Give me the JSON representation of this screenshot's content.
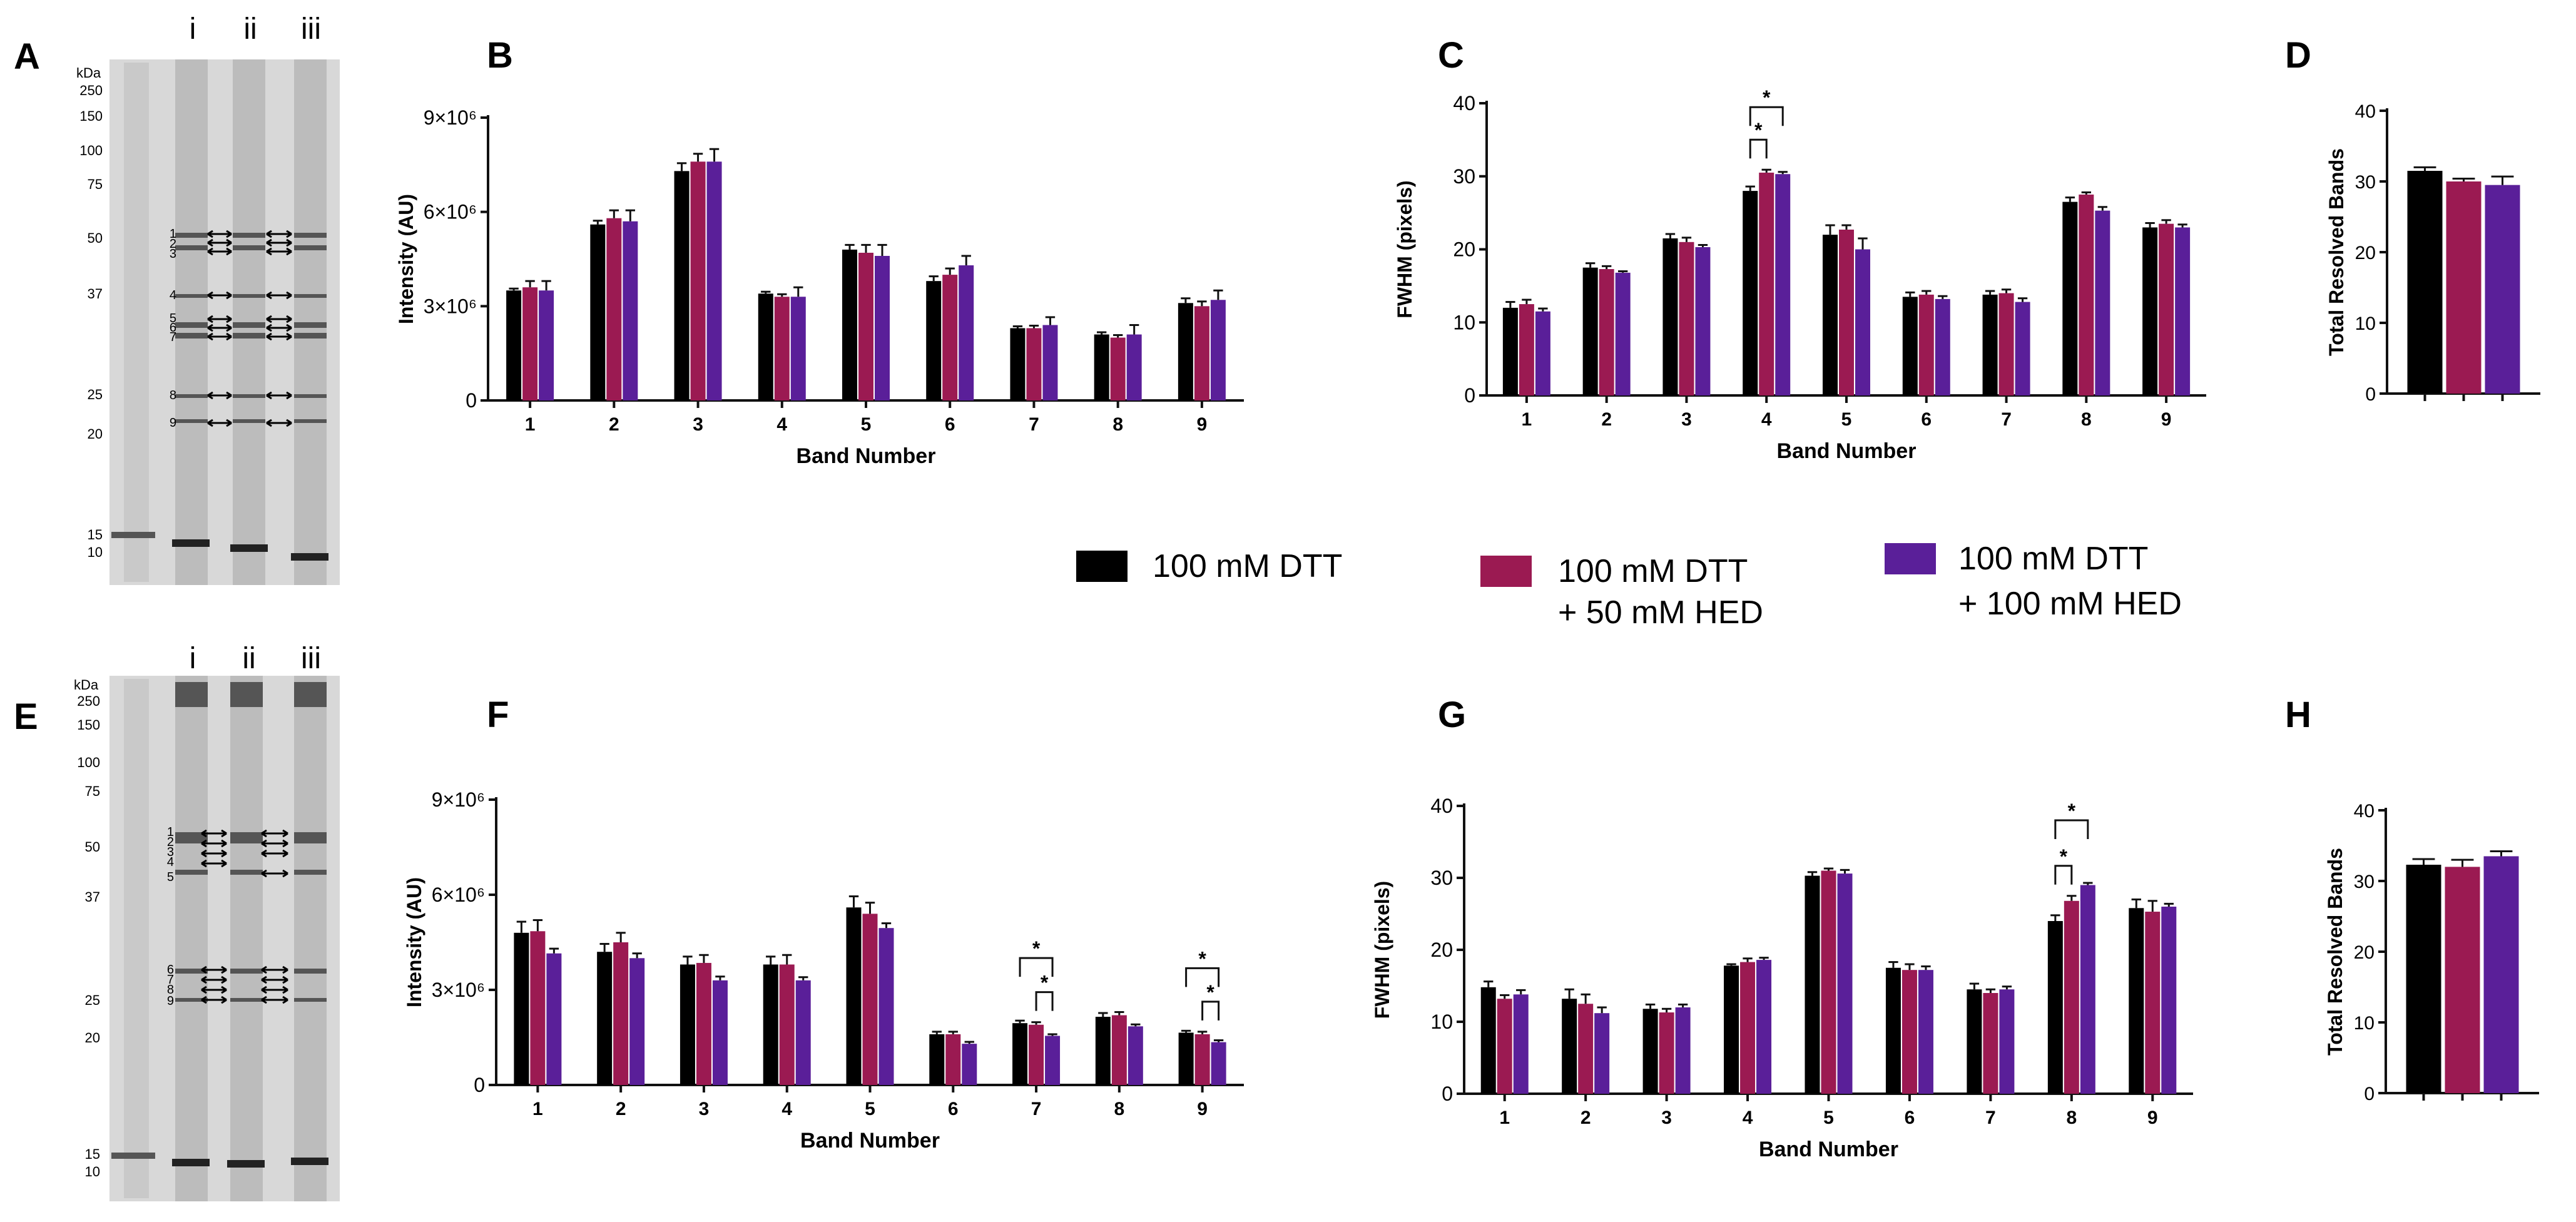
{
  "colors": {
    "dtt": "#000000",
    "dtt_hed50": "#9b1a52",
    "dtt_hed100": "#5a1f99",
    "gel_background": "#d8d8d8",
    "axis": "#111111"
  },
  "legend": {
    "items": [
      {
        "line1": "100 mM DTT",
        "line2": "",
        "color_key": "dtt"
      },
      {
        "line1": "100 mM DTT",
        "line2": "+ 50 mM HED",
        "color_key": "dtt_hed50"
      },
      {
        "line1": "100 mM DTT",
        "line2": "+ 100 mM HED",
        "color_key": "dtt_hed100"
      }
    ]
  },
  "gels": [
    {
      "panel_letter": "A",
      "kda_header": "kDa",
      "ladder_labels": [
        "250",
        "150",
        "100",
        "75",
        "50",
        "37",
        "25",
        "20",
        "15",
        "10"
      ],
      "lane_labels": [
        "i",
        "ii",
        "iii"
      ],
      "band_numbers": [
        "1",
        "2",
        "3",
        "4",
        "5",
        "6",
        "7",
        "8",
        "9"
      ]
    },
    {
      "panel_letter": "E",
      "kda_header": "kDa",
      "ladder_labels": [
        "250",
        "150",
        "100",
        "75",
        "50",
        "37",
        "25",
        "20",
        "15",
        "10"
      ],
      "lane_labels": [
        "i",
        "ii",
        "iii"
      ],
      "band_numbers": [
        "1",
        "2",
        "3",
        "4",
        "5",
        "6",
        "7",
        "8",
        "9"
      ]
    }
  ],
  "chart_data": [
    {
      "panel_letter": "B",
      "type": "bar",
      "xlabel": "Band Number",
      "ylabel": "Intensity (AU)",
      "ylim": [
        0,
        9000000
      ],
      "ytick_labels": [
        "0",
        "3×10⁶",
        "6×10⁶",
        "9×10⁶"
      ],
      "categories": [
        "1",
        "2",
        "3",
        "4",
        "5",
        "6",
        "7",
        "8",
        "9"
      ],
      "series": [
        {
          "name": "100 mM DTT",
          "values": [
            3500000,
            5600000,
            7300000,
            3400000,
            4800000,
            3800000,
            2300000,
            2100000,
            3100000
          ],
          "errors": [
            60000,
            120000,
            250000,
            60000,
            150000,
            150000,
            60000,
            70000,
            150000
          ]
        },
        {
          "name": "100 mM DTT + 50 mM HED",
          "values": [
            3600000,
            5800000,
            7600000,
            3300000,
            4700000,
            4000000,
            2300000,
            2000000,
            3000000
          ],
          "errors": [
            200000,
            250000,
            250000,
            80000,
            250000,
            200000,
            80000,
            80000,
            150000
          ]
        },
        {
          "name": "100 mM DTT + 100 mM HED",
          "values": [
            3500000,
            5700000,
            7600000,
            3300000,
            4600000,
            4300000,
            2400000,
            2100000,
            3200000
          ],
          "errors": [
            300000,
            350000,
            400000,
            300000,
            350000,
            300000,
            250000,
            300000,
            300000
          ]
        }
      ],
      "annotations": []
    },
    {
      "panel_letter": "C",
      "type": "bar",
      "xlabel": "Band Number",
      "ylabel": "FWHM (pixels)",
      "ylim": [
        0,
        40
      ],
      "ytick_labels": [
        "0",
        "10",
        "20",
        "30",
        "40"
      ],
      "categories": [
        "1",
        "2",
        "3",
        "4",
        "5",
        "6",
        "7",
        "8",
        "9"
      ],
      "series": [
        {
          "name": "100 mM DTT",
          "values": [
            12,
            17.5,
            21.5,
            28,
            22,
            13.5,
            13.8,
            26.5,
            23
          ],
          "errors": [
            0.8,
            0.6,
            0.6,
            0.6,
            1.3,
            0.6,
            0.5,
            0.6,
            0.6
          ]
        },
        {
          "name": "100 mM DTT + 50 mM HED",
          "values": [
            12.5,
            17.3,
            21,
            30.5,
            22.7,
            13.8,
            14,
            27.5,
            23.5
          ],
          "errors": [
            0.6,
            0.4,
            0.6,
            0.4,
            0.6,
            0.5,
            0.5,
            0.3,
            0.5
          ]
        },
        {
          "name": "100 mM DTT + 100 mM HED",
          "values": [
            11.5,
            16.8,
            20.3,
            30.3,
            20,
            13.2,
            12.8,
            25.3,
            23
          ],
          "errors": [
            0.4,
            0.2,
            0.3,
            0.3,
            1.5,
            0.4,
            0.5,
            0.5,
            0.4
          ]
        }
      ],
      "annotations": [
        {
          "text": "*",
          "category_index": 3,
          "from_series": 0,
          "to_series": 1,
          "level": 0
        },
        {
          "text": "*",
          "category_index": 3,
          "from_series": 0,
          "to_series": 2,
          "level": 1
        }
      ]
    },
    {
      "panel_letter": "D",
      "type": "bar",
      "xlabel": "",
      "ylabel": "Total Resolved Bands",
      "ylim": [
        0,
        40
      ],
      "ytick_labels": [
        "0",
        "10",
        "20",
        "30",
        "40"
      ],
      "categories": [
        ""
      ],
      "series": [
        {
          "name": "100 mM DTT",
          "values": [
            31.5
          ],
          "errors": [
            0.5
          ]
        },
        {
          "name": "100 mM DTT + 50 mM HED",
          "values": [
            30
          ],
          "errors": [
            0.4
          ]
        },
        {
          "name": "100 mM DTT + 100 mM HED",
          "values": [
            29.5
          ],
          "errors": [
            1.2
          ]
        }
      ],
      "annotations": []
    },
    {
      "panel_letter": "F",
      "type": "bar",
      "xlabel": "Band Number",
      "ylabel": "Intensity (AU)",
      "ylim": [
        0,
        9000000
      ],
      "ytick_labels": [
        "0",
        "3×10⁶",
        "6×10⁶",
        "9×10⁶"
      ],
      "categories": [
        "1",
        "2",
        "3",
        "4",
        "5",
        "6",
        "7",
        "8",
        "9"
      ],
      "series": [
        {
          "name": "100 mM DTT",
          "values": [
            4800000,
            4200000,
            3800000,
            3800000,
            5600000,
            1600000,
            1950000,
            2150000,
            1650000
          ],
          "errors": [
            350000,
            250000,
            250000,
            250000,
            350000,
            80000,
            80000,
            120000,
            60000
          ]
        },
        {
          "name": "100 mM DTT + 50 mM HED",
          "values": [
            4850000,
            4500000,
            3850000,
            3800000,
            5400000,
            1600000,
            1900000,
            2200000,
            1600000
          ],
          "errors": [
            350000,
            300000,
            250000,
            300000,
            350000,
            80000,
            80000,
            100000,
            80000
          ]
        },
        {
          "name": "100 mM DTT + 100 mM HED",
          "values": [
            4150000,
            4000000,
            3300000,
            3300000,
            4950000,
            1300000,
            1550000,
            1850000,
            1350000
          ],
          "errors": [
            150000,
            150000,
            120000,
            100000,
            150000,
            60000,
            50000,
            60000,
            60000
          ]
        }
      ],
      "annotations": [
        {
          "text": "*",
          "category_index": 6,
          "from_series": 1,
          "to_series": 2,
          "level": 0
        },
        {
          "text": "*",
          "category_index": 6,
          "from_series": 0,
          "to_series": 2,
          "level": 1
        },
        {
          "text": "*",
          "category_index": 8,
          "from_series": 1,
          "to_series": 2,
          "level": 0
        },
        {
          "text": "*",
          "category_index": 8,
          "from_series": 0,
          "to_series": 2,
          "level": 1
        }
      ]
    },
    {
      "panel_letter": "G",
      "type": "bar",
      "xlabel": "Band Number",
      "ylabel": "FWHM (pixels)",
      "ylim": [
        0,
        40
      ],
      "ytick_labels": [
        "0",
        "10",
        "20",
        "30",
        "40"
      ],
      "categories": [
        "1",
        "2",
        "3",
        "4",
        "5",
        "6",
        "7",
        "8",
        "9"
      ],
      "series": [
        {
          "name": "100 mM DTT",
          "values": [
            14.8,
            13.2,
            11.8,
            17.8,
            30.3,
            17.5,
            14.5,
            24,
            25.8
          ],
          "errors": [
            0.8,
            1.3,
            0.6,
            0.2,
            0.5,
            0.8,
            0.8,
            0.8,
            1.2
          ]
        },
        {
          "name": "100 mM DTT + 50 mM HED",
          "values": [
            13.2,
            12.5,
            11.3,
            18.3,
            31,
            17.2,
            14,
            26.8,
            25.3
          ],
          "errors": [
            0.5,
            1.3,
            0.5,
            0.5,
            0.3,
            0.8,
            0.5,
            0.7,
            1.5
          ]
        },
        {
          "name": "100 mM DTT + 100 mM HED",
          "values": [
            13.8,
            11.2,
            12,
            18.6,
            30.6,
            17.2,
            14.5,
            29,
            26
          ],
          "errors": [
            0.6,
            0.8,
            0.4,
            0.3,
            0.5,
            0.5,
            0.4,
            0.3,
            0.4
          ]
        }
      ],
      "annotations": [
        {
          "text": "*",
          "category_index": 7,
          "from_series": 0,
          "to_series": 1,
          "level": 0
        },
        {
          "text": "*",
          "category_index": 7,
          "from_series": 0,
          "to_series": 2,
          "level": 1
        }
      ]
    },
    {
      "panel_letter": "H",
      "type": "bar",
      "xlabel": "",
      "ylabel": "Total Resolved Bands",
      "ylim": [
        0,
        40
      ],
      "ytick_labels": [
        "0",
        "10",
        "20",
        "30",
        "40"
      ],
      "categories": [
        ""
      ],
      "series": [
        {
          "name": "100 mM DTT",
          "values": [
            32.3
          ],
          "errors": [
            0.8
          ]
        },
        {
          "name": "100 mM DTT + 50 mM HED",
          "values": [
            32
          ],
          "errors": [
            1
          ]
        },
        {
          "name": "100 mM DTT + 100 mM HED",
          "values": [
            33.5
          ],
          "errors": [
            0.7
          ]
        }
      ],
      "annotations": []
    }
  ]
}
